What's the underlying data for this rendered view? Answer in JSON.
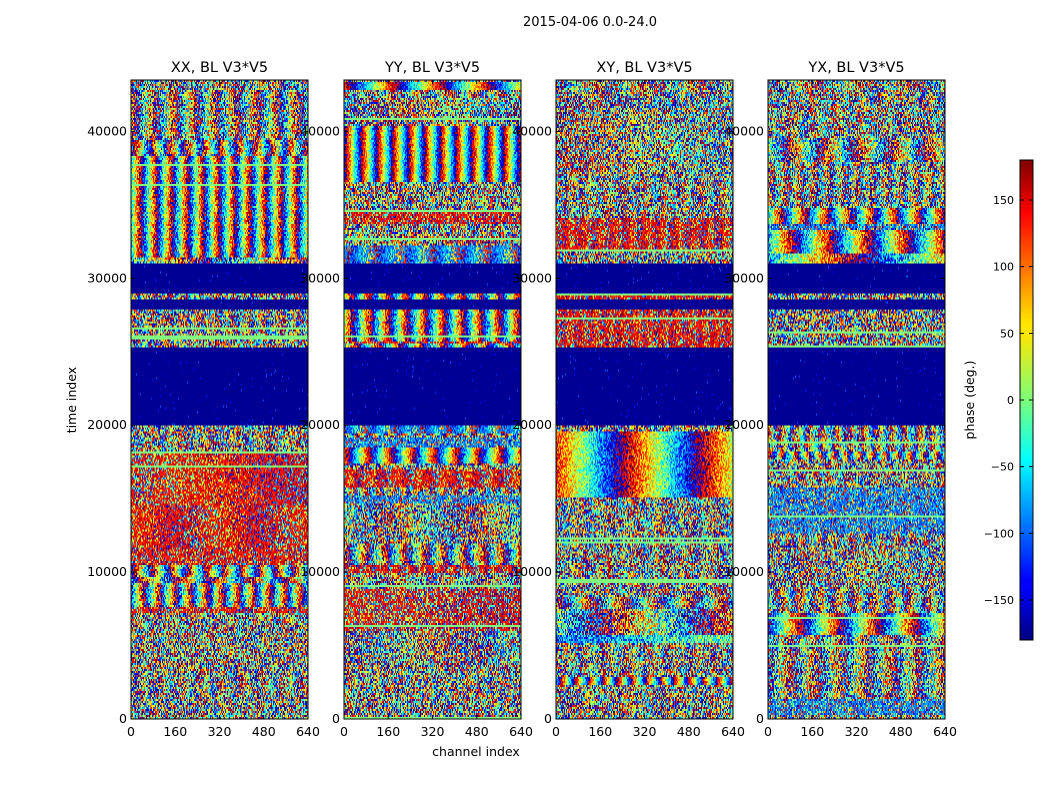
{
  "chart_data": {
    "type": "heatmap",
    "suptitle": "2015-04-06 0.0-24.0",
    "xlabel": "channel index",
    "ylabel": "time index",
    "xlim": [
      0,
      640
    ],
    "ylim": [
      0,
      43500
    ],
    "x_ticks": [
      0,
      160,
      320,
      480,
      640
    ],
    "y_ticks": [
      0,
      10000,
      20000,
      30000,
      40000
    ],
    "panels": [
      {
        "title": "XX, BL V3*V5",
        "pol": "XX"
      },
      {
        "title": "YY, BL V3*V5",
        "pol": "YY"
      },
      {
        "title": "XY, BL V3*V5",
        "pol": "XY"
      },
      {
        "title": "YX, BL V3*V5",
        "pol": "YX"
      }
    ],
    "colorbar": {
      "label": "phase (deg.)",
      "range": [
        -180,
        180
      ],
      "ticks": [
        -150,
        -100,
        -50,
        0,
        50,
        100,
        150
      ],
      "colormap": "jet"
    },
    "flagged_time_ranges": [
      [
        20000,
        25400
      ],
      [
        28000,
        28600
      ],
      [
        29000,
        31000
      ]
    ]
  }
}
